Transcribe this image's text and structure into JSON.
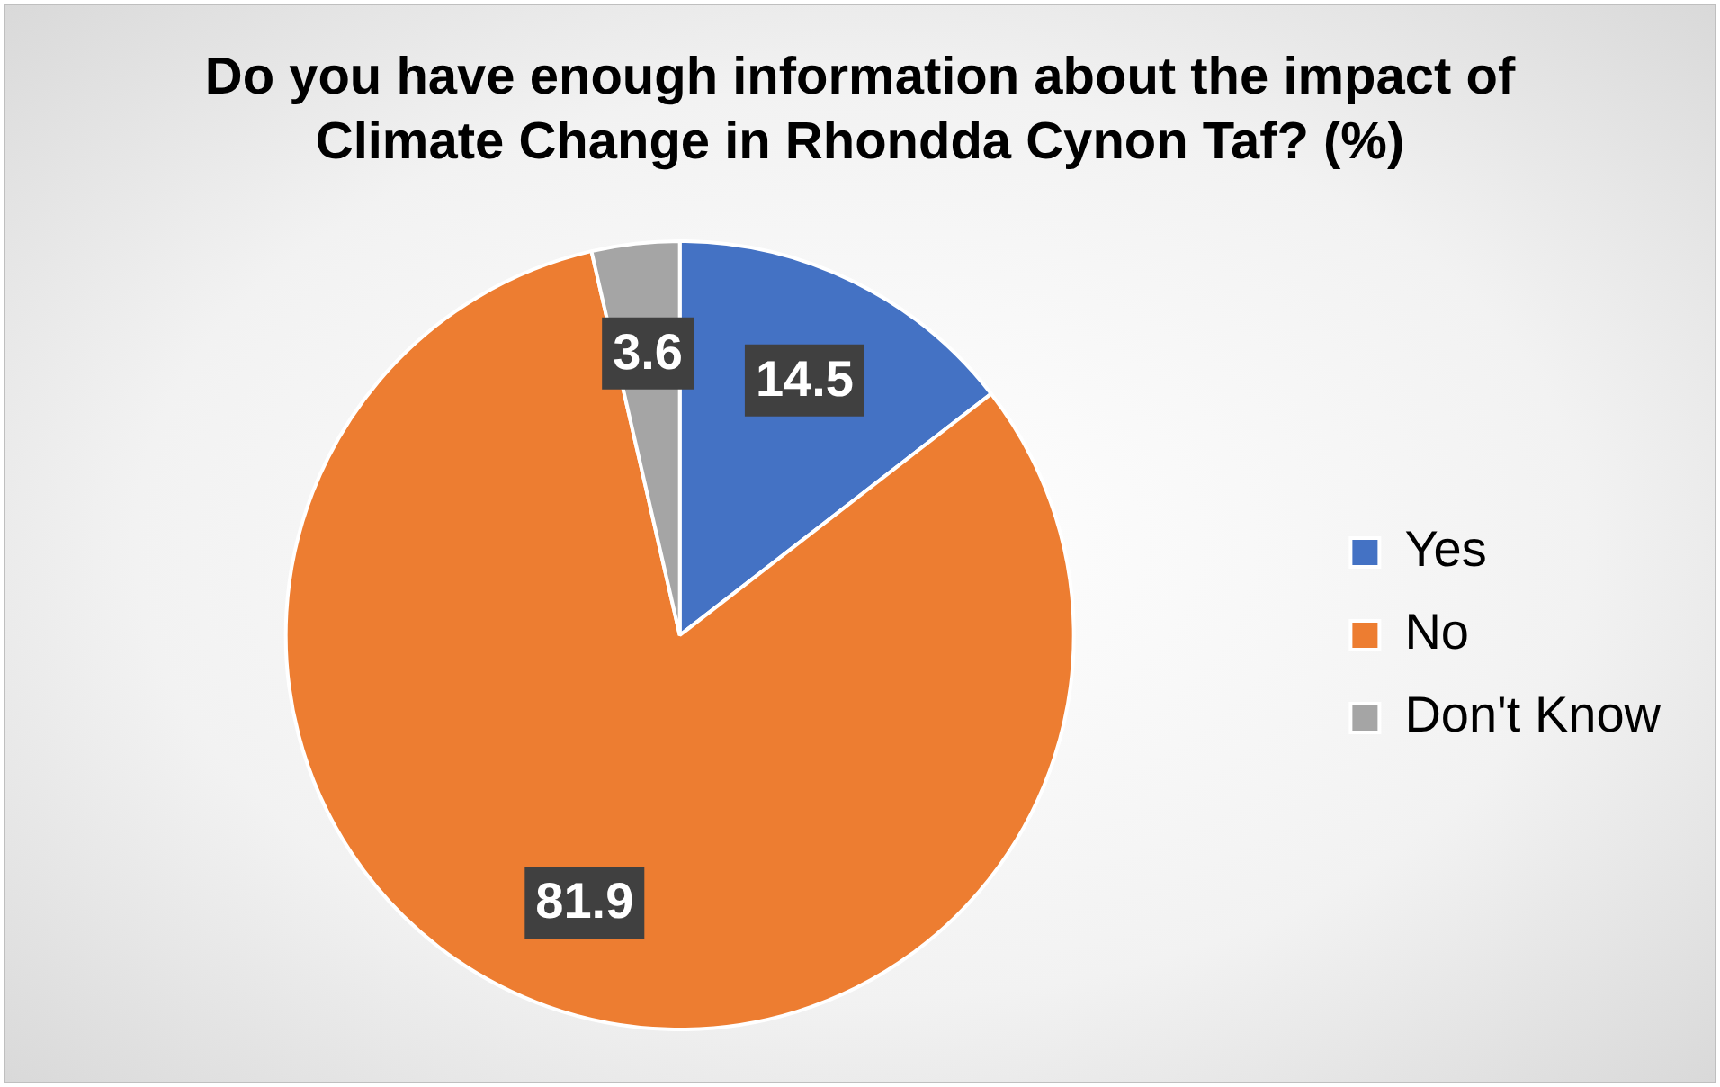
{
  "chart_data": {
    "type": "pie",
    "title": "Do you have enough information about the impact of Climate Change in Rhondda Cynon Taf? (%)",
    "categories": [
      "Yes",
      "No",
      "Don't Know"
    ],
    "values": [
      14.5,
      81.9,
      3.6
    ],
    "colors": [
      "#4472c4",
      "#ed7d31",
      "#a5a5a5"
    ],
    "data_labels": true,
    "legend": "right"
  }
}
